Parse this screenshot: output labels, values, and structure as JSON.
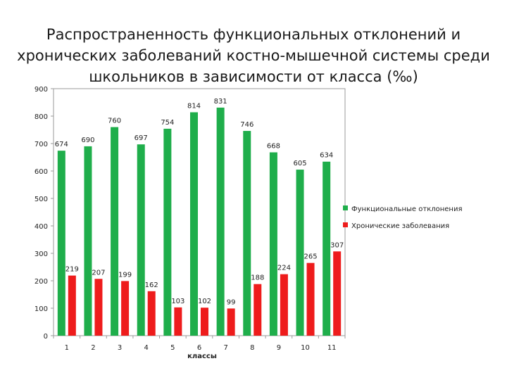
{
  "chart_data": {
    "type": "bar",
    "title": "Распространенность функциональных отклонений и хронических заболеваний костно-мышечной системы среди школьников в зависимости от класса (‰)",
    "xlabel": "классы",
    "ylabel": "",
    "ylim": [
      0,
      900
    ],
    "yticks": [
      0,
      100,
      200,
      300,
      400,
      500,
      600,
      700,
      800,
      900
    ],
    "grid": false,
    "legend_position": "right",
    "categories": [
      "1",
      "2",
      "3",
      "4",
      "5",
      "6",
      "7",
      "8",
      "9",
      "10",
      "11"
    ],
    "series": [
      {
        "name": "Функциональные отклонения",
        "color": "#1fae4b",
        "values": [
          674,
          690,
          760,
          697,
          754,
          814,
          831,
          746,
          668,
          605,
          634
        ]
      },
      {
        "name": "Хронические заболевания",
        "color": "#ee1c1c",
        "values": [
          219,
          207,
          199,
          162,
          103,
          102,
          99,
          188,
          224,
          265,
          307
        ]
      }
    ]
  }
}
